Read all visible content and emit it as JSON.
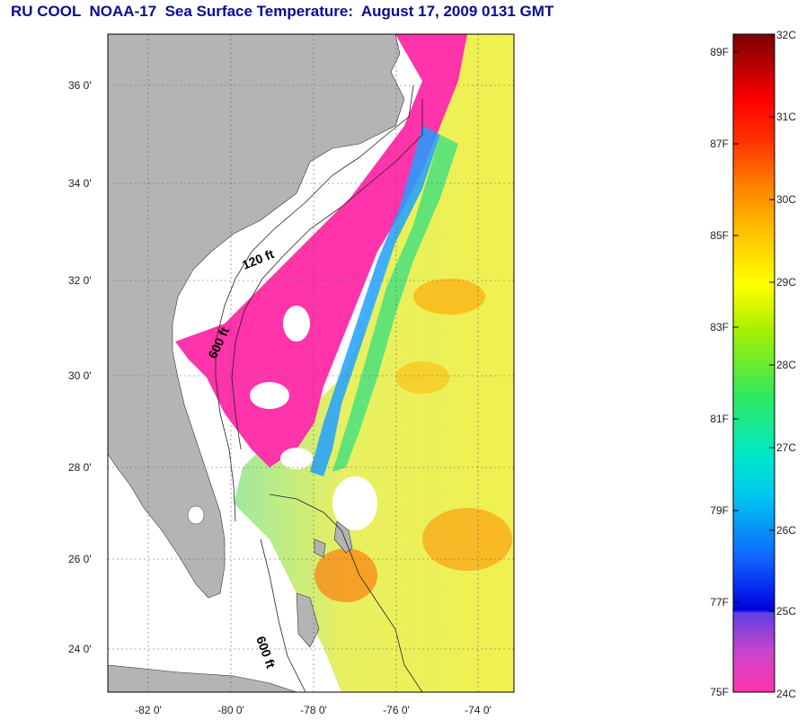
{
  "title": "RU COOL  NOAA-17  Sea Surface Temperature:  August 17, 2009 0131 GMT",
  "map": {
    "lat_labels": [
      "36 0'",
      "34 0'",
      "32 0'",
      "30 0'",
      "28 0'",
      "26 0'",
      "24 0'"
    ],
    "lon_labels": [
      "-82 0'",
      "-80 0'",
      "-78 0'",
      "-76 0'",
      "-74 0'"
    ],
    "contours": [
      "120 ft",
      "600 ft",
      "600 ft"
    ],
    "colors": {
      "land": "#b4b4b4",
      "clouds": "#ffffff",
      "cold": "#ff33aa",
      "warm": "#ff8c00"
    }
  },
  "colorbar": {
    "f_labels": [
      "89F",
      "87F",
      "85F",
      "83F",
      "81F",
      "79F",
      "77F",
      "75F"
    ],
    "c_labels": [
      "32C",
      "31C",
      "30C",
      "29C",
      "28C",
      "27C",
      "26C",
      "25C",
      "24C"
    ]
  }
}
